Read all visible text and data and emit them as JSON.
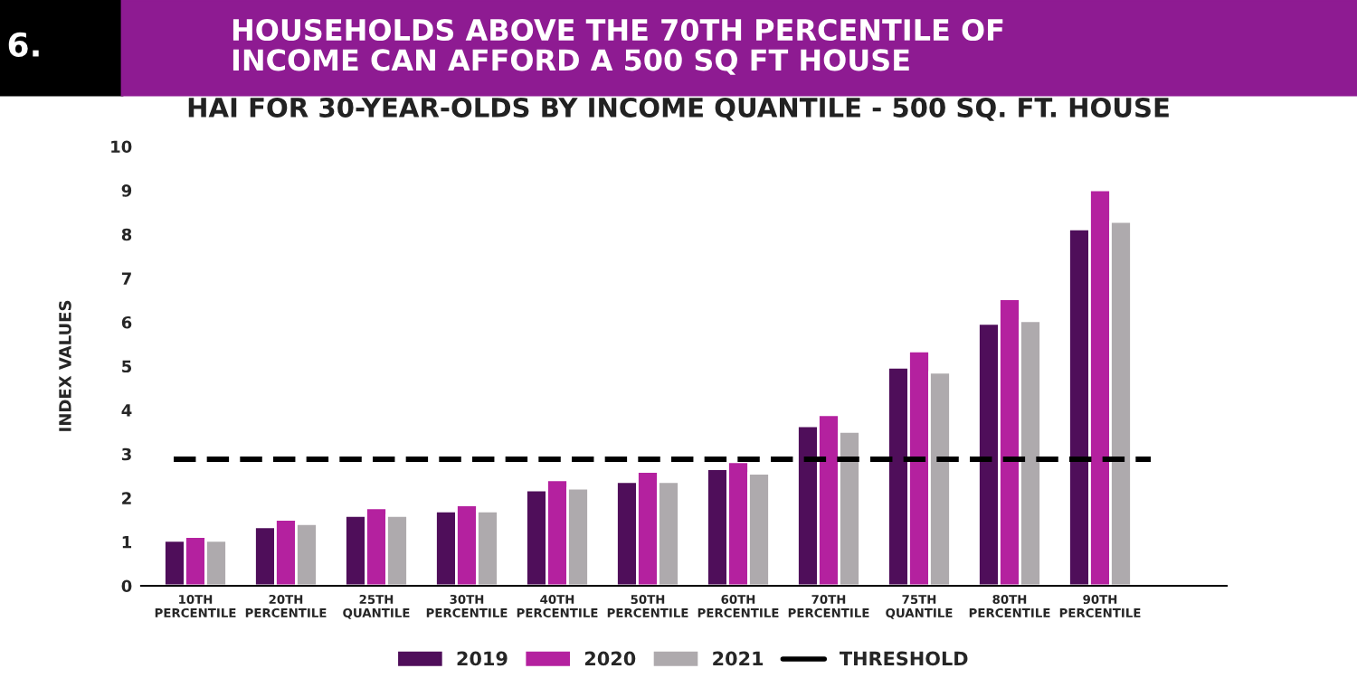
{
  "chart_data": {
    "type": "bar",
    "title": "HOUSEHOLDS ABOVE THE 70TH PERCENTILE OF\nINCOME CAN AFFORD A 500 SQ FT HOUSE",
    "subtitle": "HAI FOR 30-YEAR-OLDS BY INCOME QUANTILE - 500 SQ. FT. HOUSE",
    "annotations": [
      "6."
    ],
    "ylabel": "INDEX VALUES",
    "categories": [
      "10TH\nPERCENTILE",
      "20TH\nPERCENTILE",
      "25TH\nQUANTILE",
      "30TH\nPERCENTILE",
      "40TH\nPERCENTILE",
      "50TH\nPERCENTILE",
      "60TH\nPERCENTILE",
      "70TH\nPERCENTILE",
      "75TH\nQUANTILE",
      "80TH\nPERCENTILE",
      "90TH\nPERCENTILE"
    ],
    "series": [
      {
        "name": "2019",
        "color": "#4f0e5a",
        "values": [
          1.03,
          1.34,
          1.6,
          1.7,
          2.18,
          2.37,
          2.66,
          3.64,
          4.97,
          5.97,
          8.12
        ]
      },
      {
        "name": "2020",
        "color": "#b4219f",
        "values": [
          1.12,
          1.51,
          1.77,
          1.84,
          2.41,
          2.6,
          2.82,
          3.89,
          5.34,
          6.53,
          9.01
        ]
      },
      {
        "name": "2021",
        "color": "#aeaaad",
        "values": [
          1.03,
          1.41,
          1.6,
          1.7,
          2.22,
          2.37,
          2.56,
          3.51,
          4.86,
          6.03,
          8.29
        ]
      }
    ],
    "ref_lines": [
      {
        "axis": "y",
        "value": 2.88,
        "label": "THRESHOLD",
        "color": "#000000",
        "line_style": "dashed"
      }
    ],
    "ylim": [
      0,
      10
    ],
    "yticks": [
      0,
      1,
      2,
      3,
      4,
      5,
      6,
      7,
      8,
      9,
      10
    ],
    "grid": false,
    "legend": "bottom"
  }
}
